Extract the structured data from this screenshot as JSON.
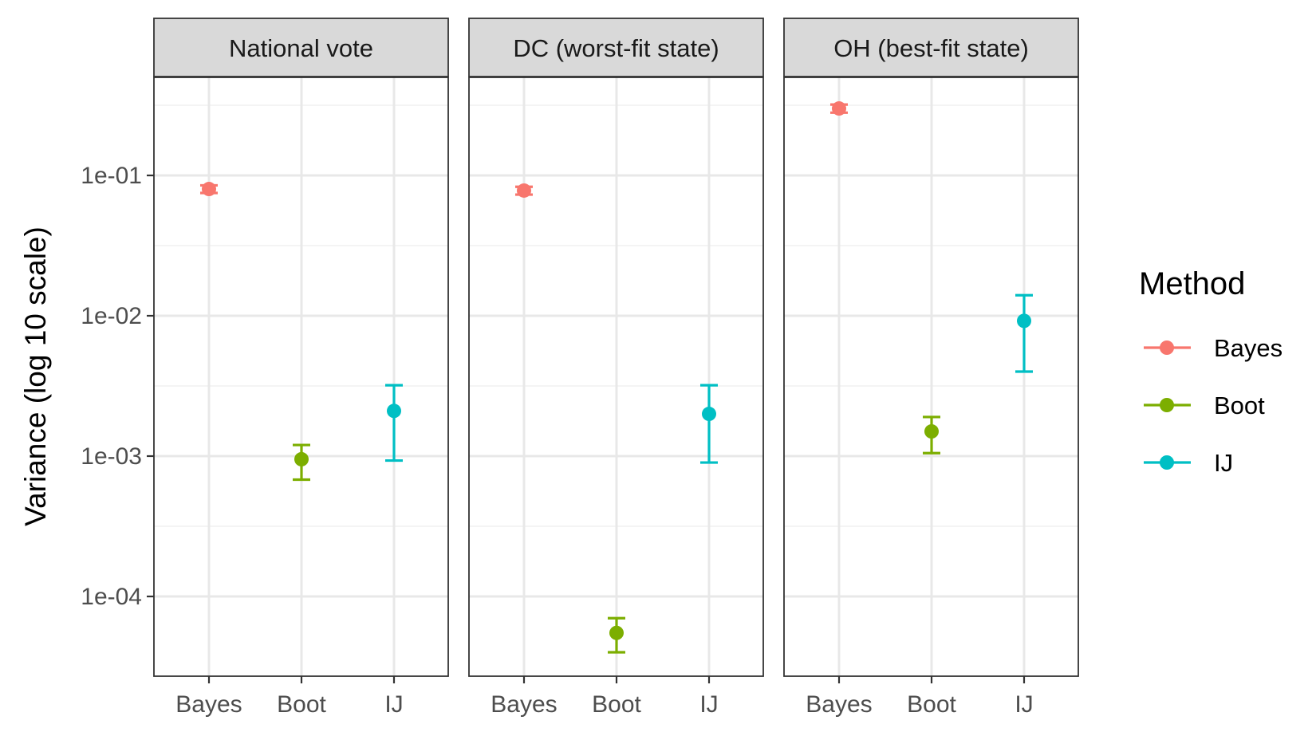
{
  "chart_data": {
    "type": "scatter",
    "ylabel": "Variance (log 10 scale)",
    "y_scale": "log10",
    "ylim": [
      2.5e-05,
      0.5
    ],
    "y_ticks": [
      {
        "value": 0.1,
        "label": "1e-01"
      },
      {
        "value": 0.01,
        "label": "1e-02"
      },
      {
        "value": 0.001,
        "label": "1e-03"
      },
      {
        "value": 0.0001,
        "label": "1e-04"
      }
    ],
    "categories": [
      "Bayes",
      "Boot",
      "IJ"
    ],
    "grid": true,
    "legend": {
      "title": "Method",
      "position": "right",
      "items": [
        {
          "label": "Bayes",
          "color": "#F8766D"
        },
        {
          "label": "Boot",
          "color": "#7CAE00"
        },
        {
          "label": "IJ",
          "color": "#00BFC4"
        }
      ]
    },
    "panels": [
      {
        "title": "National vote",
        "points": [
          {
            "method": "Bayes",
            "y": 0.08,
            "ymin": 0.075,
            "ymax": 0.085
          },
          {
            "method": "Boot",
            "y": 0.00095,
            "ymin": 0.00068,
            "ymax": 0.0012
          },
          {
            "method": "IJ",
            "y": 0.0021,
            "ymin": 0.00093,
            "ymax": 0.0032
          }
        ]
      },
      {
        "title": "DC (worst-fit state)",
        "points": [
          {
            "method": "Bayes",
            "y": 0.078,
            "ymin": 0.073,
            "ymax": 0.083
          },
          {
            "method": "Boot",
            "y": 5.5e-05,
            "ymin": 4e-05,
            "ymax": 7e-05
          },
          {
            "method": "IJ",
            "y": 0.002,
            "ymin": 0.0009,
            "ymax": 0.0032
          }
        ]
      },
      {
        "title": "OH (best-fit state)",
        "points": [
          {
            "method": "Bayes",
            "y": 0.3,
            "ymin": 0.28,
            "ymax": 0.32
          },
          {
            "method": "Boot",
            "y": 0.0015,
            "ymin": 0.00105,
            "ymax": 0.0019
          },
          {
            "method": "IJ",
            "y": 0.0092,
            "ymin": 0.004,
            "ymax": 0.014
          }
        ]
      }
    ]
  }
}
